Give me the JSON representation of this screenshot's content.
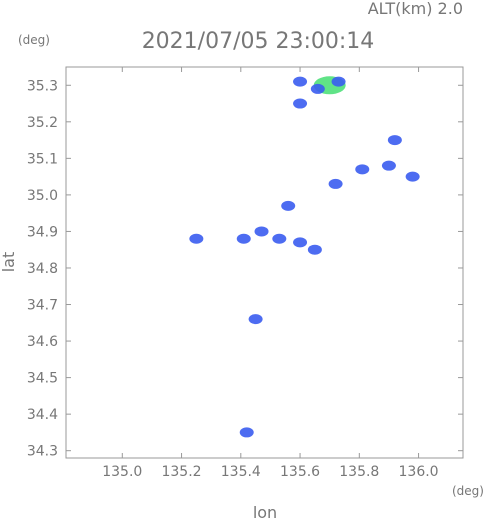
{
  "chart_data": {
    "type": "scatter",
    "title": "2021/07/05 23:00:14",
    "subtitle": "ALT(km) 2.0",
    "x_label": "lon",
    "y_label": "lat",
    "x_unit": "(deg)",
    "y_unit": "(deg)",
    "x": [
      135.7,
      135.73,
      135.66,
      135.6,
      135.6,
      135.9,
      135.81,
      135.98,
      135.92,
      135.56,
      135.53,
      135.6,
      135.41,
      135.47,
      135.65,
      135.25,
      135.45,
      135.42,
      135.72
    ],
    "y": [
      35.3,
      35.31,
      35.29,
      35.31,
      35.25,
      35.08,
      35.07,
      35.05,
      35.15,
      34.97,
      34.88,
      34.87,
      34.88,
      34.9,
      34.85,
      34.88,
      34.66,
      34.35,
      35.03
    ],
    "color": "#3a5cf0",
    "strong_color": "#4fe07a",
    "xlim": [
      134.81,
      136.15
    ],
    "ylim": [
      34.28,
      35.35
    ],
    "xticks": [
      {
        "value": 135.0,
        "label": "135.0"
      },
      135.2,
      135.4,
      135.6,
      135.8,
      {
        "value": 136.0,
        "label": "136.0"
      }
    ],
    "yticks": [
      34.3,
      34.4,
      34.5,
      34.6,
      34.7,
      34.8,
      34.9,
      {
        "value": 35.0,
        "label": "35.0"
      },
      35.1,
      35.2,
      35.3
    ]
  }
}
